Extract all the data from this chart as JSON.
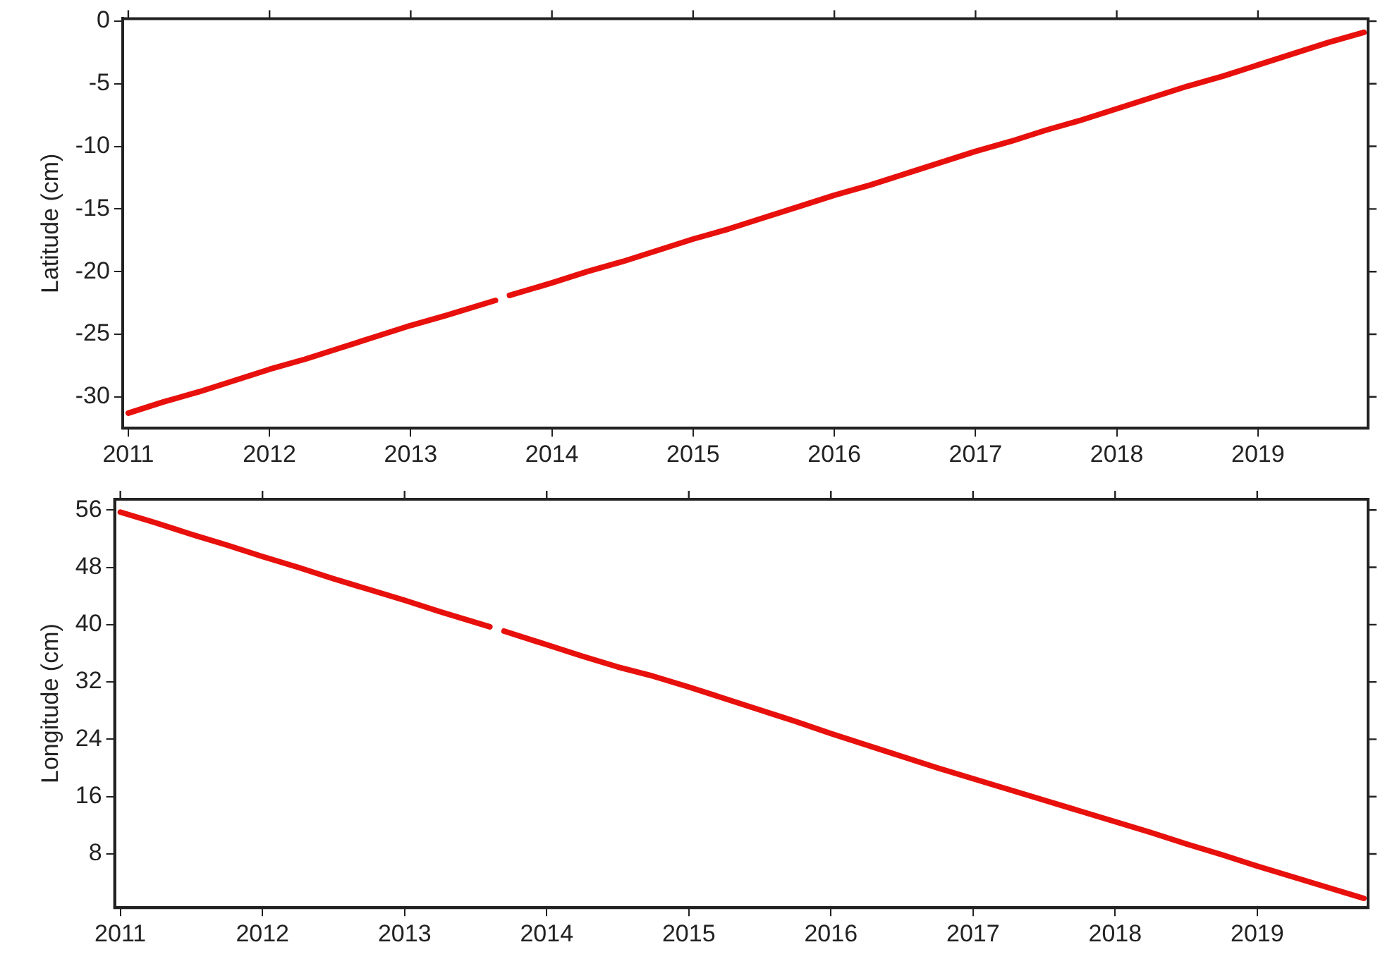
{
  "chart_data": [
    {
      "type": "line",
      "ylabel": "Latitude (cm)",
      "xlim": [
        2010.96,
        2019.78
      ],
      "xticks": [
        2011,
        2012,
        2013,
        2014,
        2015,
        2016,
        2017,
        2018,
        2019
      ],
      "ylim": [
        -32.5,
        0.2
      ],
      "yticks": [
        -30,
        -25,
        -20,
        -15,
        -10,
        -5,
        0
      ],
      "x": [
        2011.0,
        2011.25,
        2011.5,
        2011.75,
        2012.0,
        2012.25,
        2012.5,
        2012.75,
        2013.0,
        2013.25,
        2013.6,
        2013.65,
        2013.7,
        2014.0,
        2014.25,
        2014.5,
        2014.75,
        2015.0,
        2015.25,
        2015.5,
        2015.75,
        2016.0,
        2016.25,
        2016.5,
        2016.75,
        2017.0,
        2017.25,
        2017.5,
        2017.75,
        2018.0,
        2018.25,
        2018.5,
        2018.75,
        2019.0,
        2019.25,
        2019.5,
        2019.75
      ],
      "series": [
        {
          "color": "#e8100c",
          "values": [
            -31.3,
            -30.4,
            -29.6,
            -28.7,
            -27.8,
            -27.0,
            -26.1,
            -25.2,
            -24.3,
            -23.5,
            -22.3,
            null,
            -21.9,
            -20.9,
            -20.0,
            -19.2,
            -18.3,
            -17.4,
            -16.6,
            -15.7,
            -14.8,
            -13.9,
            -13.1,
            -12.2,
            -11.3,
            -10.4,
            -9.6,
            -8.7,
            -7.9,
            -7.0,
            -6.1,
            -5.2,
            -4.4,
            -3.5,
            -2.6,
            -1.7,
            -0.9
          ]
        }
      ]
    },
    {
      "type": "line",
      "ylabel": "Longitude (cm)",
      "xlim": [
        2010.96,
        2019.78
      ],
      "xticks": [
        2011,
        2012,
        2013,
        2014,
        2015,
        2016,
        2017,
        2018,
        2019
      ],
      "ylim": [
        0.5,
        57.5
      ],
      "yticks": [
        8,
        16,
        24,
        32,
        40,
        48,
        56
      ],
      "x": [
        2011.0,
        2011.25,
        2011.5,
        2011.75,
        2012.0,
        2012.25,
        2012.5,
        2012.75,
        2013.0,
        2013.25,
        2013.6,
        2013.65,
        2013.7,
        2014.0,
        2014.25,
        2014.5,
        2014.75,
        2015.0,
        2015.25,
        2015.5,
        2015.75,
        2016.0,
        2016.25,
        2016.5,
        2016.75,
        2017.0,
        2017.25,
        2017.5,
        2017.75,
        2018.0,
        2018.25,
        2018.5,
        2018.75,
        2019.0,
        2019.25,
        2019.5,
        2019.75
      ],
      "series": [
        {
          "color": "#e8100c",
          "values": [
            55.7,
            54.2,
            52.6,
            51.1,
            49.5,
            48.0,
            46.4,
            44.9,
            43.4,
            41.8,
            39.7,
            null,
            39.1,
            37.2,
            35.6,
            34.1,
            32.8,
            31.3,
            29.7,
            28.1,
            26.5,
            24.8,
            23.2,
            21.6,
            20.0,
            18.5,
            17.0,
            15.5,
            14.0,
            12.5,
            11.0,
            9.4,
            7.9,
            6.3,
            4.8,
            3.3,
            1.8
          ]
        }
      ]
    }
  ]
}
